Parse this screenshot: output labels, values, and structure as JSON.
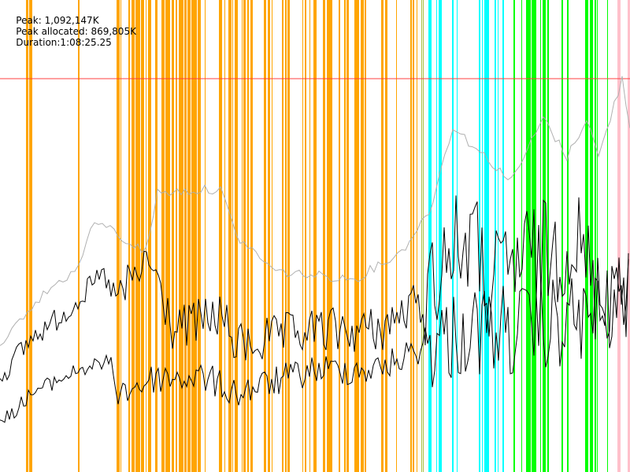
{
  "header": {
    "peak": "Peak: 1,092,147K",
    "peak_allocated": "Peak allocated: 869,805K",
    "duration": "Duration:1:08:25.25"
  }
}
